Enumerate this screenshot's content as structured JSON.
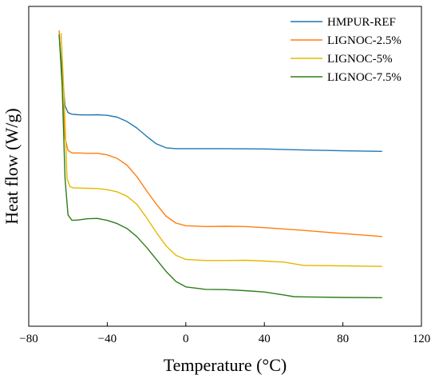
{
  "chart_data": {
    "type": "line",
    "title": "",
    "xlabel": "Temperature (°C)",
    "ylabel": "Heat flow (W/g)",
    "xlim": [
      -80,
      120
    ],
    "ylim": [
      0,
      100
    ],
    "x_ticks": [
      -80,
      -40,
      0,
      40,
      80,
      120
    ],
    "x_tick_labels": [
      "−80",
      "−40",
      "0",
      "40",
      "80",
      "120"
    ],
    "y_ticks_shown": false,
    "grid": false,
    "legend_position": "top-right",
    "series": [
      {
        "name": "HMPUR-REF",
        "color": "#1f77b4",
        "x": [
          -64.5,
          -63.0,
          -61.5,
          -60.0,
          -58,
          -55,
          -50,
          -45,
          -40,
          -35,
          -30,
          -25,
          -20,
          -15,
          -10,
          -5,
          0,
          10,
          20,
          40,
          60,
          80,
          100
        ],
        "y": [
          98.5,
          85.0,
          72.0,
          69.5,
          68.9,
          68.7,
          68.6,
          68.7,
          68.5,
          67.8,
          66.2,
          63.8,
          60.7,
          57.9,
          56.4,
          56.1,
          56.1,
          56.1,
          56.1,
          56.0,
          55.6,
          55.3,
          55.1
        ]
      },
      {
        "name": "LIGNOC-2.5%",
        "color": "#ff7f0e",
        "x": [
          -64.5,
          -63.0,
          -61.5,
          -60.0,
          -58,
          -55,
          -50,
          -45,
          -40,
          -35,
          -30,
          -25,
          -20,
          -15,
          -10,
          -5,
          0,
          10,
          20,
          30,
          40,
          60,
          80,
          100
        ],
        "y": [
          100.0,
          80.0,
          60.0,
          55.5,
          54.5,
          54.5,
          54.4,
          54.4,
          53.8,
          52.5,
          50.0,
          45.8,
          40.5,
          35.5,
          31.0,
          28.5,
          27.5,
          27.2,
          27.3,
          27.2,
          26.8,
          25.8,
          24.6,
          23.5
        ]
      },
      {
        "name": "LIGNOC-5%",
        "color": "#e6b800",
        "x": [
          -63.5,
          -62.0,
          -60.5,
          -59.0,
          -57,
          -55,
          -50,
          -45,
          -40,
          -35,
          -30,
          -25,
          -20,
          -15,
          -10,
          -5,
          0,
          10,
          20,
          30,
          40,
          50,
          60,
          80,
          100
        ],
        "y": [
          99.0,
          75.0,
          45.0,
          42.0,
          41.5,
          41.5,
          41.4,
          41.3,
          40.9,
          40.1,
          38.5,
          35.5,
          30.5,
          25.0,
          20.0,
          16.5,
          15.0,
          14.6,
          14.6,
          14.7,
          14.4,
          14.0,
          12.8,
          12.6,
          12.4
        ]
      },
      {
        "name": "LIGNOC-7.5%",
        "color": "#2e7d1a",
        "x": [
          -64.5,
          -63.0,
          -61.5,
          -60.0,
          -58,
          -55,
          -50,
          -45,
          -40,
          -35,
          -30,
          -25,
          -20,
          -15,
          -10,
          -5,
          0,
          10,
          20,
          30,
          40,
          50,
          55,
          60,
          80,
          100
        ],
        "y": [
          98.5,
          80.0,
          45.0,
          31.5,
          29.5,
          29.6,
          30.1,
          30.2,
          29.5,
          28.3,
          26.5,
          23.5,
          19.5,
          15.0,
          10.5,
          6.8,
          4.8,
          3.9,
          3.8,
          3.4,
          2.9,
          1.8,
          1.2,
          1.1,
          0.9,
          0.8
        ]
      }
    ]
  }
}
